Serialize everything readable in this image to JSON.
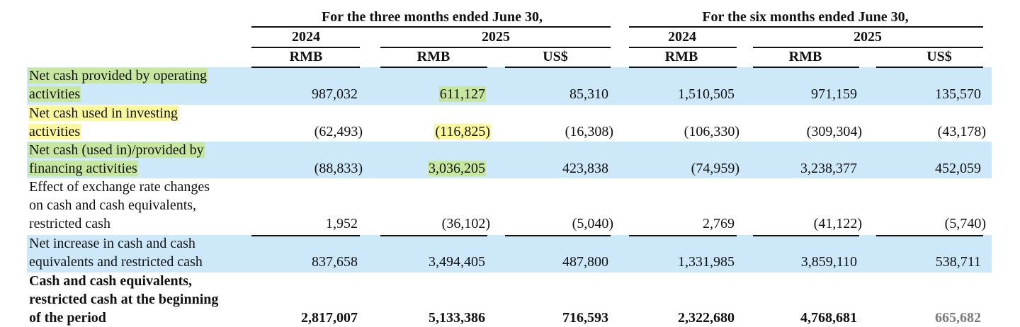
{
  "table": {
    "group_headers": [
      "For the three months ended June 30,",
      "For the six months ended June 30,"
    ],
    "years": [
      "2024",
      "2025",
      "2024",
      "2025"
    ],
    "currencies": [
      "RMB",
      "RMB",
      "US$",
      "RMB",
      "RMB",
      "US$"
    ],
    "rows": [
      {
        "label": [
          "Net cash provided by operating",
          "activities"
        ],
        "values": [
          "987,032",
          "611,127",
          "85,310",
          "1,510,505",
          "971,159",
          "135,570"
        ]
      },
      {
        "label": [
          "Net cash used in investing",
          "activities"
        ],
        "values": [
          "(62,493)",
          "(116,825)",
          "(16,308)",
          "(106,330)",
          "(309,304)",
          "(43,178)"
        ]
      },
      {
        "label": [
          "Net cash (used in)/provided by",
          "financing activities"
        ],
        "values": [
          "(88,833)",
          "3,036,205",
          "423,838",
          "(74,959)",
          "3,238,377",
          "452,059"
        ]
      },
      {
        "label": [
          "Effect of exchange rate changes",
          "on cash and cash equivalents,",
          "restricted cash"
        ],
        "values": [
          "1,952",
          "(36,102)",
          "(5,040)",
          "2,769",
          "(41,122)",
          "(5,740)"
        ]
      },
      {
        "label": [
          "Net increase in cash and cash",
          "equivalents and restricted cash"
        ],
        "values": [
          "837,658",
          "3,494,405",
          "487,800",
          "1,331,985",
          "3,859,110",
          "538,711"
        ]
      },
      {
        "label": [
          "Cash and cash equivalents,",
          "restricted cash at the beginning",
          "of the period"
        ],
        "values": [
          "2,817,007",
          "5,133,386",
          "716,593",
          "2,322,680",
          "4,768,681",
          "665,682"
        ]
      }
    ]
  }
}
